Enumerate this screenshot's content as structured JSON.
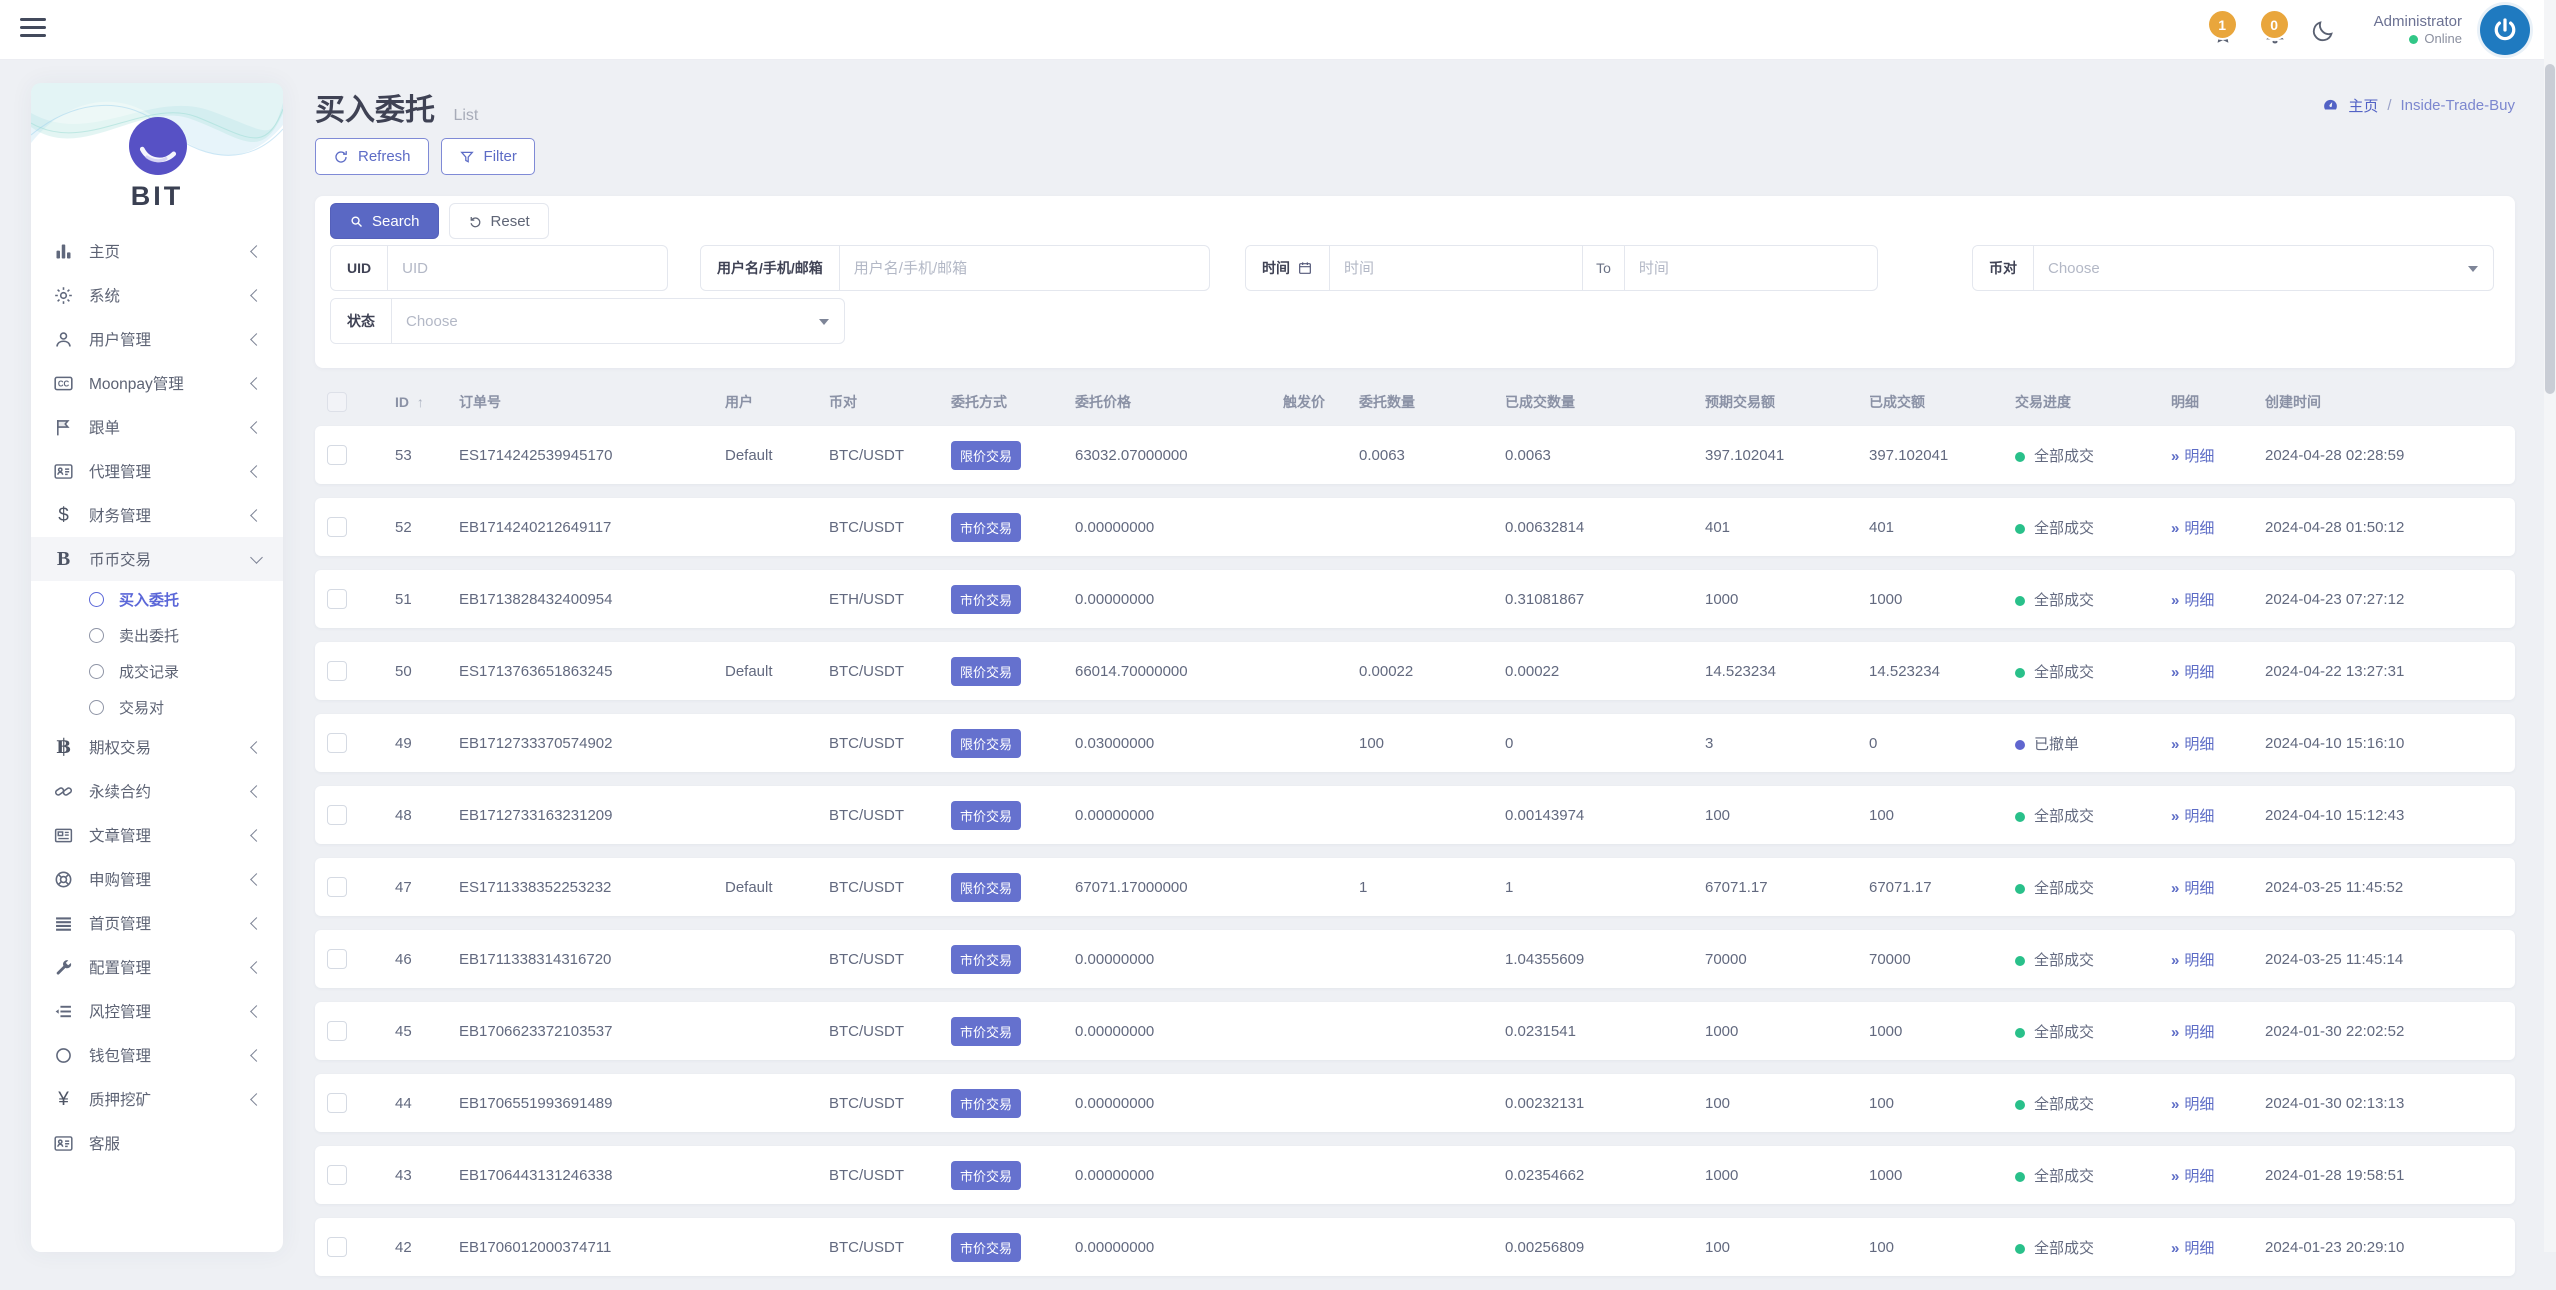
{
  "theme": {
    "indigo": "#6571ce",
    "link": "#5d6cc6",
    "filled_dot": "#29c08a",
    "cancelled_dot": "#6066cf",
    "online_green": "#32c787",
    "badge_orange": "#e9a63c",
    "avatar_blue": "#1f7ac0",
    "logo_purple": "#5751c5"
  },
  "topbar": {
    "notif_award_count": "1",
    "notif_bell_count": "0",
    "user_name": "Administrator",
    "user_status": "Online"
  },
  "sidebar": {
    "logo_text": "BIT",
    "menu": [
      {
        "icon": "chart-bar",
        "label": "主页",
        "chevron": "collapsed"
      },
      {
        "icon": "gear",
        "label": "系统",
        "chevron": "collapsed"
      },
      {
        "icon": "user",
        "label": "用户管理",
        "chevron": "collapsed"
      },
      {
        "icon": "credit-card",
        "label": "Moonpay管理",
        "chevron": "collapsed"
      },
      {
        "icon": "flag",
        "label": "跟单",
        "chevron": "collapsed"
      },
      {
        "icon": "id-card",
        "label": "代理管理",
        "chevron": "collapsed"
      },
      {
        "icon": "dollar",
        "label": "财务管理",
        "chevron": "collapsed"
      },
      {
        "icon": "bitcoin-b",
        "label": "币币交易",
        "chevron": "expanded",
        "highlight": true
      },
      {
        "icon": "circle-sub",
        "label": "买入委托",
        "sub": true,
        "active": true
      },
      {
        "icon": "circle-sub",
        "label": "卖出委托",
        "sub": true
      },
      {
        "icon": "circle-sub",
        "label": "成交记录",
        "sub": true
      },
      {
        "icon": "circle-sub",
        "label": "交易对",
        "sub": true
      },
      {
        "icon": "baht",
        "label": "期权交易",
        "chevron": "collapsed"
      },
      {
        "icon": "chain",
        "label": "永续合约",
        "chevron": "collapsed"
      },
      {
        "icon": "newspaper",
        "label": "文章管理",
        "chevron": "collapsed"
      },
      {
        "icon": "lifebuoy",
        "label": "申购管理",
        "chevron": "collapsed"
      },
      {
        "icon": "menu-lines",
        "label": "首页管理",
        "chevron": "collapsed"
      },
      {
        "icon": "wrench",
        "label": "配置管理",
        "chevron": "collapsed"
      },
      {
        "icon": "indent-list",
        "label": "风控管理",
        "chevron": "collapsed"
      },
      {
        "icon": "circle-o",
        "label": "钱包管理",
        "chevron": "collapsed"
      },
      {
        "icon": "yen",
        "label": "质押挖矿",
        "chevron": "collapsed"
      },
      {
        "icon": "id-card",
        "label": "客服",
        "chevron": "none"
      }
    ]
  },
  "page": {
    "title": "买入委托",
    "subtitle": "List",
    "breadcrumb": {
      "home": "主页",
      "separator": "/",
      "current": "Inside-Trade-Buy"
    },
    "refresh_label": "Refresh",
    "filter_label": "Filter"
  },
  "filters": {
    "search_label": "Search",
    "reset_label": "Reset",
    "uid_label": "UID",
    "uid_placeholder": "UID",
    "user_label": "用户名/手机/邮箱",
    "user_placeholder": "用户名/手机/邮箱",
    "time_label": "时间",
    "time_from_placeholder": "时间",
    "to_label": "To",
    "time_to_placeholder": "时间",
    "pair_label": "币对",
    "pair_placeholder": "Choose",
    "status_label": "状态",
    "status_placeholder": "Choose"
  },
  "table": {
    "sort_arrow": "↑",
    "headers": [
      "ID",
      "订单号",
      "用户",
      "币对",
      "委托方式",
      "委托价格",
      "触发价",
      "委托数量",
      "已成交数量",
      "预期交易额",
      "已成交额",
      "交易进度",
      "明细",
      "创建时间"
    ],
    "detail_icon": "»",
    "detail_label": "明细",
    "rows": [
      {
        "id": "53",
        "order_no": "ES1714242539945170",
        "user": "Default",
        "pair": "BTC/USDT",
        "order_type": "限价交易",
        "price": "63032.07000000",
        "trigger": "",
        "qty": "0.0063",
        "filled_qty": "0.0063",
        "expected": "397.102041",
        "filled_amount": "397.102041",
        "progress": "全部成交",
        "progress_state": "filled",
        "created": "2024-04-28 02:28:59"
      },
      {
        "id": "52",
        "order_no": "EB1714240212649117",
        "user": "",
        "pair": "BTC/USDT",
        "order_type": "市价交易",
        "price": "0.00000000",
        "trigger": "",
        "qty": "",
        "filled_qty": "0.00632814",
        "expected": "401",
        "filled_amount": "401",
        "progress": "全部成交",
        "progress_state": "filled",
        "created": "2024-04-28 01:50:12"
      },
      {
        "id": "51",
        "order_no": "EB1713828432400954",
        "user": "",
        "pair": "ETH/USDT",
        "order_type": "市价交易",
        "price": "0.00000000",
        "trigger": "",
        "qty": "",
        "filled_qty": "0.31081867",
        "expected": "1000",
        "filled_amount": "1000",
        "progress": "全部成交",
        "progress_state": "filled",
        "created": "2024-04-23 07:27:12"
      },
      {
        "id": "50",
        "order_no": "ES1713763651863245",
        "user": "Default",
        "pair": "BTC/USDT",
        "order_type": "限价交易",
        "price": "66014.70000000",
        "trigger": "",
        "qty": "0.00022",
        "filled_qty": "0.00022",
        "expected": "14.523234",
        "filled_amount": "14.523234",
        "progress": "全部成交",
        "progress_state": "filled",
        "created": "2024-04-22 13:27:31"
      },
      {
        "id": "49",
        "order_no": "EB1712733370574902",
        "user": "",
        "pair": "BTC/USDT",
        "order_type": "限价交易",
        "price": "0.03000000",
        "trigger": "",
        "qty": "100",
        "filled_qty": "0",
        "expected": "3",
        "filled_amount": "0",
        "progress": "已撤单",
        "progress_state": "cancelled",
        "created": "2024-04-10 15:16:10"
      },
      {
        "id": "48",
        "order_no": "EB1712733163231209",
        "user": "",
        "pair": "BTC/USDT",
        "order_type": "市价交易",
        "price": "0.00000000",
        "trigger": "",
        "qty": "",
        "filled_qty": "0.00143974",
        "expected": "100",
        "filled_amount": "100",
        "progress": "全部成交",
        "progress_state": "filled",
        "created": "2024-04-10 15:12:43"
      },
      {
        "id": "47",
        "order_no": "ES1711338352253232",
        "user": "Default",
        "pair": "BTC/USDT",
        "order_type": "限价交易",
        "price": "67071.17000000",
        "trigger": "",
        "qty": "1",
        "filled_qty": "1",
        "expected": "67071.17",
        "filled_amount": "67071.17",
        "progress": "全部成交",
        "progress_state": "filled",
        "created": "2024-03-25 11:45:52"
      },
      {
        "id": "46",
        "order_no": "EB1711338314316720",
        "user": "",
        "pair": "BTC/USDT",
        "order_type": "市价交易",
        "price": "0.00000000",
        "trigger": "",
        "qty": "",
        "filled_qty": "1.04355609",
        "expected": "70000",
        "filled_amount": "70000",
        "progress": "全部成交",
        "progress_state": "filled",
        "created": "2024-03-25 11:45:14"
      },
      {
        "id": "45",
        "order_no": "EB1706623372103537",
        "user": "",
        "pair": "BTC/USDT",
        "order_type": "市价交易",
        "price": "0.00000000",
        "trigger": "",
        "qty": "",
        "filled_qty": "0.0231541",
        "expected": "1000",
        "filled_amount": "1000",
        "progress": "全部成交",
        "progress_state": "filled",
        "created": "2024-01-30 22:02:52"
      },
      {
        "id": "44",
        "order_no": "EB1706551993691489",
        "user": "",
        "pair": "BTC/USDT",
        "order_type": "市价交易",
        "price": "0.00000000",
        "trigger": "",
        "qty": "",
        "filled_qty": "0.00232131",
        "expected": "100",
        "filled_amount": "100",
        "progress": "全部成交",
        "progress_state": "filled",
        "created": "2024-01-30 02:13:13"
      },
      {
        "id": "43",
        "order_no": "EB1706443131246338",
        "user": "",
        "pair": "BTC/USDT",
        "order_type": "市价交易",
        "price": "0.00000000",
        "trigger": "",
        "qty": "",
        "filled_qty": "0.02354662",
        "expected": "1000",
        "filled_amount": "1000",
        "progress": "全部成交",
        "progress_state": "filled",
        "created": "2024-01-28 19:58:51"
      },
      {
        "id": "42",
        "order_no": "EB1706012000374711",
        "user": "",
        "pair": "BTC/USDT",
        "order_type": "市价交易",
        "price": "0.00000000",
        "trigger": "",
        "qty": "",
        "filled_qty": "0.00256809",
        "expected": "100",
        "filled_amount": "100",
        "progress": "全部成交",
        "progress_state": "filled",
        "created": "2024-01-23 20:29:10"
      }
    ]
  }
}
